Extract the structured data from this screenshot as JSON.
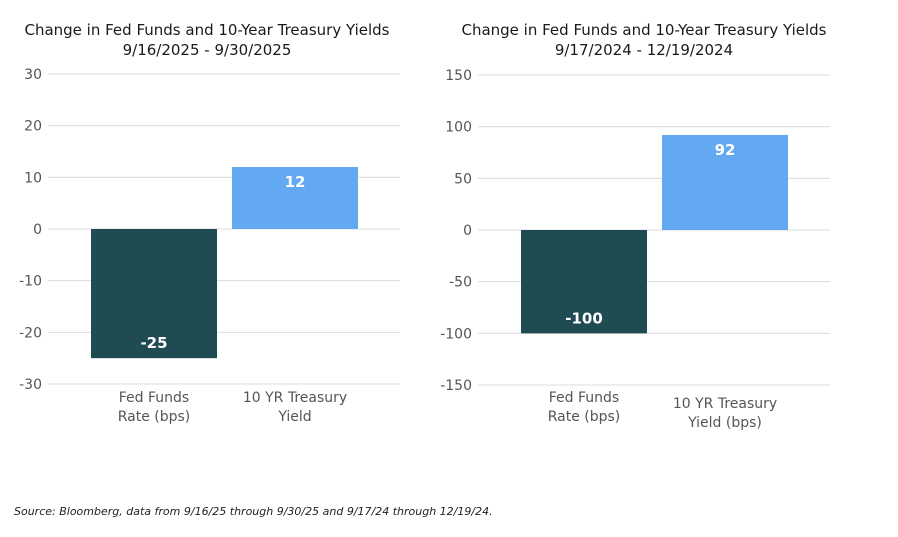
{
  "chart_data": [
    {
      "type": "bar",
      "title": "Change in Fed Funds and 10-Year Treasury Yields",
      "subtitle": "9/16/2025 - 9/30/2025",
      "categories": [
        [
          "Fed Funds",
          "Rate (bps)"
        ],
        [
          "10 YR Treasury",
          "Yield"
        ]
      ],
      "values": [
        -25,
        12
      ],
      "data_labels": [
        "-25",
        "12"
      ],
      "colors": [
        "#1f4b53",
        "#62a9f1"
      ],
      "ylim": [
        -30,
        30
      ],
      "yticks": [
        30,
        20,
        10,
        0,
        -10,
        -20,
        -30
      ],
      "grid": true,
      "legend": "none"
    },
    {
      "type": "bar",
      "title": "Change in Fed Funds and 10-Year Treasury Yields",
      "subtitle": "9/17/2024 - 12/19/2024",
      "categories": [
        [
          "Fed Funds",
          "Rate (bps)"
        ],
        [
          "10 YR Treasury",
          "Yield (bps)"
        ]
      ],
      "values": [
        -100,
        92
      ],
      "data_labels": [
        "-100",
        "92"
      ],
      "colors": [
        "#1f4b53",
        "#62a9f1"
      ],
      "ylim": [
        -150,
        150
      ],
      "yticks": [
        150,
        100,
        50,
        0,
        -50,
        -100,
        -150
      ],
      "grid": true,
      "legend": "none"
    }
  ],
  "source_note": "Source: Bloomberg, data from 9/16/25 through 9/30/25 and 9/17/24 through 12/19/24."
}
